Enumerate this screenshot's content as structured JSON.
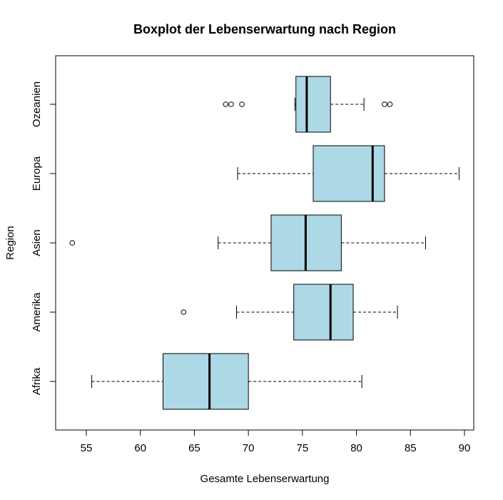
{
  "chart_data": {
    "type": "boxplot",
    "orientation": "horizontal",
    "title": "Boxplot der Lebenserwartung nach Region",
    "xlabel": "Gesamte Lebenserwartung",
    "ylabel": "Region",
    "xlim": [
      52.5,
      91
    ],
    "x_ticks": [
      55,
      60,
      65,
      70,
      75,
      80,
      85,
      90
    ],
    "grid": false,
    "box_color": "#add8e6",
    "categories": [
      "Afrika",
      "Amerika",
      "Asien",
      "Europa",
      "Ozeanien"
    ],
    "boxes": [
      {
        "category": "Afrika",
        "whisker_low": 55.5,
        "q1": 62.1,
        "median": 66.4,
        "q3": 70.0,
        "whisker_high": 80.5,
        "outliers": []
      },
      {
        "category": "Amerika",
        "whisker_low": 68.9,
        "q1": 74.2,
        "median": 77.6,
        "q3": 79.7,
        "whisker_high": 83.8,
        "outliers": [
          64.0
        ]
      },
      {
        "category": "Asien",
        "whisker_low": 67.2,
        "q1": 72.1,
        "median": 75.3,
        "q3": 78.6,
        "whisker_high": 86.4,
        "outliers": [
          53.7
        ]
      },
      {
        "category": "Europa",
        "whisker_low": 69.0,
        "q1": 76.0,
        "median": 81.5,
        "q3": 82.6,
        "whisker_high": 89.5,
        "outliers": []
      },
      {
        "category": "Ozeanien",
        "whisker_low": 74.3,
        "q1": 74.4,
        "median": 75.4,
        "q3": 77.6,
        "whisker_high": 80.7,
        "outliers": [
          67.9,
          68.4,
          69.4,
          82.6,
          83.1
        ]
      }
    ]
  }
}
